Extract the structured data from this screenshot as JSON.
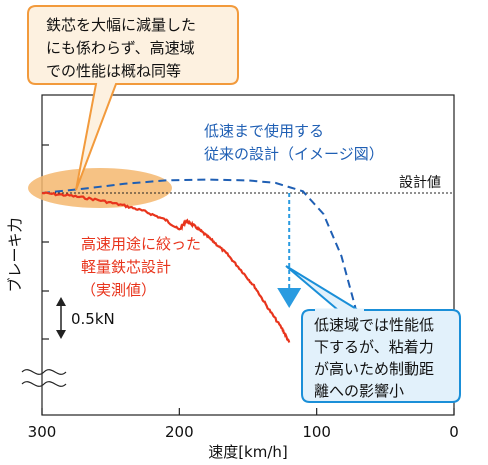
{
  "chart_data": {
    "type": "line",
    "xlabel": "速度[km/h]",
    "ylabel": "ブレーキ力",
    "x_reversed": true,
    "xlim": [
      300,
      0
    ],
    "x_ticks": [
      "300",
      "200",
      "100",
      "0"
    ],
    "x_tick_values": [
      300,
      200,
      100,
      0
    ],
    "y_ticks_unlabeled": true,
    "axis_break": true,
    "scale_bar_label": "0.5kN",
    "design_value_label": "設計値",
    "series": [
      {
        "name": "低速まで使用する\n従来の設計（イメージ図）",
        "style": "dashed",
        "color": "#1f5fb4",
        "x": [
          300,
          270,
          240,
          210,
          180,
          150,
          130,
          110,
          95,
          82,
          72,
          68
        ],
        "y": [
          0.0,
          0.05,
          0.11,
          0.15,
          0.16,
          0.15,
          0.12,
          0.02,
          -0.25,
          -0.75,
          -1.35,
          -1.75
        ]
      },
      {
        "name": "高速用途に絞った\n軽量鉄芯設計\n（実測値）",
        "style": "solid",
        "color": "#e8341c",
        "x": [
          300,
          280,
          260,
          240,
          225,
          210,
          200,
          195,
          190,
          183,
          175,
          165,
          155,
          145,
          135,
          125,
          120
        ],
        "y": [
          0.0,
          -0.03,
          -0.08,
          -0.15,
          -0.22,
          -0.32,
          -0.44,
          -0.33,
          -0.38,
          -0.47,
          -0.58,
          -0.73,
          -0.92,
          -1.12,
          -1.38,
          -1.62,
          -1.78
        ]
      }
    ],
    "design_value_y": 0.0,
    "arrow": {
      "x": 120,
      "y_from": 0.0,
      "y_to": -1.25,
      "color": "#2a9be0"
    },
    "annotations": [
      {
        "id": "top-callout",
        "text": [
          "鉄芯を大幅に減量した",
          "にも係わらず、高速域",
          "での性能は概ね同等"
        ],
        "border": "#f29a3c",
        "fill": "#fdf1e0"
      },
      {
        "id": "bottom-callout",
        "text": [
          "低速域では性能低",
          "下するが、粘着力",
          "が高いため制動距",
          "離への影響小"
        ],
        "border": "#1a8fd8",
        "fill": "#e2f1fb"
      }
    ],
    "highlight": {
      "color": "#f5b76e"
    }
  }
}
